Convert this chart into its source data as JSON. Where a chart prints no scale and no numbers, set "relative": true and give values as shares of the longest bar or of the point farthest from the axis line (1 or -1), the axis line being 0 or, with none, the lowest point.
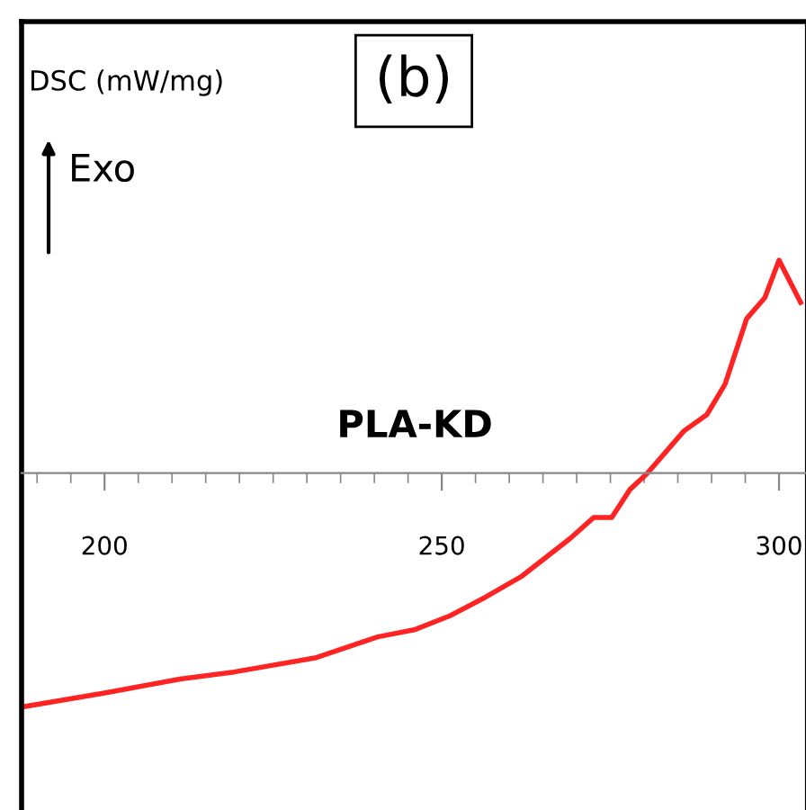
{
  "chart_data": {
    "type": "line",
    "title": "(b)",
    "annotations": [
      "DSC (mW/mg)",
      "Exo"
    ],
    "relative": true,
    "legend": false,
    "grid": false,
    "marker": "none",
    "line_style": "solid",
    "xlim": [
      187.7,
      304
    ],
    "xticks": [
      200,
      250,
      300,
      {
        "value": 190,
        "label": null
      },
      {
        "value": 195,
        "label": null
      },
      {
        "value": 205,
        "label": null
      },
      {
        "value": 210,
        "label": null
      },
      {
        "value": 215,
        "label": null
      },
      {
        "value": 220,
        "label": null
      },
      {
        "value": 225,
        "label": null
      },
      {
        "value": 230,
        "label": null
      },
      {
        "value": 235,
        "label": null
      },
      {
        "value": 240,
        "label": null
      },
      {
        "value": 245,
        "label": null
      },
      {
        "value": 255,
        "label": null
      },
      {
        "value": 260,
        "label": null
      },
      {
        "value": 265,
        "label": null
      },
      {
        "value": 270,
        "label": null
      },
      {
        "value": 275,
        "label": null
      },
      {
        "value": 280,
        "label": null
      },
      {
        "value": 285,
        "label": null
      },
      {
        "value": 290,
        "label": null
      },
      {
        "value": 295,
        "label": null
      }
    ],
    "series": [
      {
        "name": "PLA-KD",
        "color": "#ff2424",
        "x": [
          187.7,
          200,
          211.2,
          219.2,
          231.2,
          240.5,
          245.9,
          251.2,
          256.5,
          261.9,
          269,
          272.5,
          275.2,
          277.9,
          280.5,
          285.9,
          289.3,
          292,
          295.2,
          297.9,
          300,
          303.2
        ],
        "values": [
          -1,
          -0.94,
          -0.88,
          -0.85,
          -0.79,
          -0.7,
          -0.67,
          -0.61,
          -0.53,
          -0.44,
          -0.28,
          -0.19,
          -0.19,
          -0.07,
          0,
          0.18,
          0.25,
          0.38,
          0.66,
          0.75,
          0.91,
          0.73
        ]
      }
    ]
  }
}
